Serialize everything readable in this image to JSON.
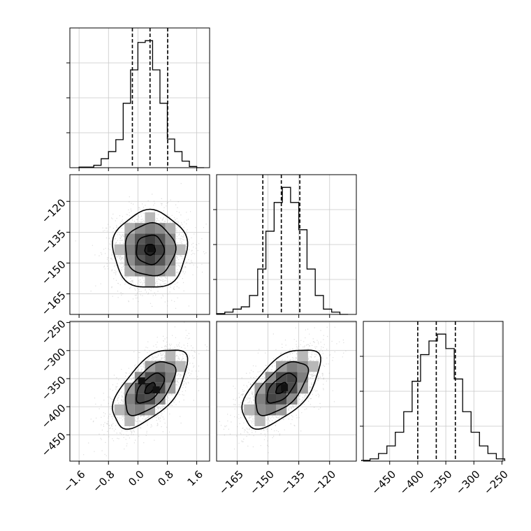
{
  "chart_data": {
    "type": "corner",
    "parameters": [
      {
        "axis_ticks": [
          -1.6,
          -0.8,
          0.0,
          0.8,
          1.6
        ],
        "axis_tick_labels": [
          "−1.6",
          "−0.8",
          "0.0",
          "0.8",
          "1.6"
        ],
        "axis_range": [
          -1.85,
          1.95
        ],
        "quantiles": [
          -0.15,
          0.33,
          0.81
        ],
        "histogram": {
          "bin_edges": [
            -1.6,
            -1.4,
            -1.2,
            -1.0,
            -0.8,
            -0.6,
            -0.4,
            -0.2,
            0.0,
            0.2,
            0.4,
            0.6,
            0.8,
            1.0,
            1.2,
            1.4,
            1.6,
            1.8
          ],
          "counts": [
            1,
            1,
            4,
            15,
            27,
            47,
            108,
            164,
            210,
            213,
            164,
            108,
            48,
            27,
            11,
            2,
            0
          ]
        }
      },
      {
        "axis_ticks": [
          -120,
          -135,
          -150,
          -165
        ],
        "axis_tick_labels": [
          "−120",
          "−135",
          "−150",
          "−165"
        ],
        "axis_range": [
          -175,
          -107
        ],
        "quantiles": [
          -152.5,
          -143.5,
          -134.5
        ],
        "histogram": {
          "bin_edges": [
            -175,
            -171,
            -167,
            -163,
            -159,
            -155,
            -151,
            -147,
            -143,
            -139,
            -135,
            -131,
            -127,
            -123,
            -119,
            -115,
            -111
          ],
          "counts": [
            1,
            3,
            7,
            10,
            25,
            60,
            110,
            148,
            168,
            148,
            112,
            60,
            25,
            7,
            3,
            0
          ]
        }
      },
      {
        "axis_ticks": [
          -450,
          -400,
          -350,
          -300,
          -250
        ],
        "axis_tick_labels": [
          "−450",
          "−400",
          "−350",
          "−300",
          "−250"
        ],
        "axis_range": [
          -497,
          -248
        ],
        "quantiles": [
          -400,
          -367,
          -333
        ],
        "histogram": {
          "bin_edges": [
            -500,
            -485,
            -470,
            -455,
            -440,
            -425,
            -410,
            -395,
            -380,
            -365,
            -350,
            -335,
            -320,
            -305,
            -290,
            -275,
            -260,
            -245
          ],
          "counts": [
            1,
            3,
            10,
            20,
            38,
            65,
            105,
            140,
            158,
            167,
            148,
            108,
            65,
            38,
            20,
            10,
            3
          ]
        }
      }
    ],
    "pairs": [
      {
        "x_param": 0,
        "y_param": 1,
        "correlation": 0.0,
        "peaks": [
          [
            0.35,
            -143
          ]
        ]
      },
      {
        "x_param": 0,
        "y_param": 2,
        "correlation": 0.6,
        "peaks": [
          [
            0.1,
            -354
          ],
          [
            0.5,
            -370
          ]
        ]
      },
      {
        "x_param": 1,
        "y_param": 2,
        "correlation": 0.6,
        "peaks": [
          [
            -142,
            -366
          ]
        ]
      }
    ],
    "contour_levels": 3,
    "grid": true,
    "axis_labels": [
      "",
      "",
      ""
    ],
    "title": ""
  }
}
